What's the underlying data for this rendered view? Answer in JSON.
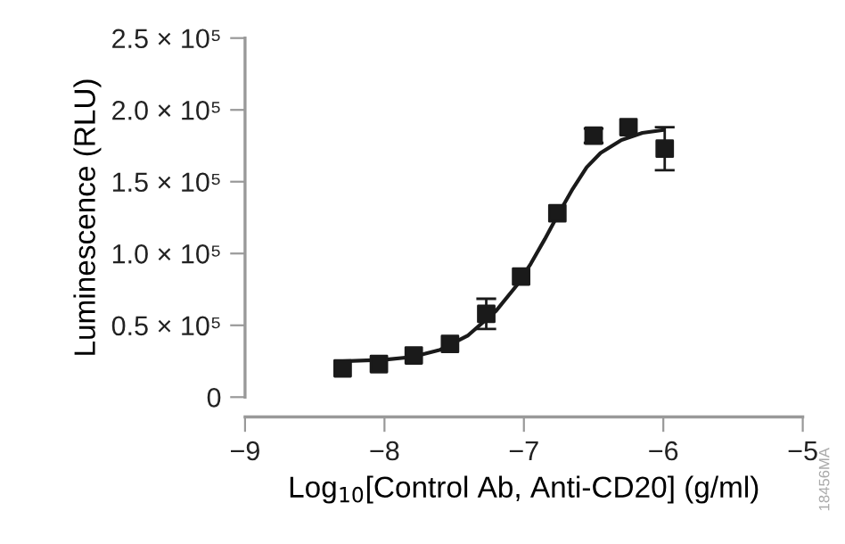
{
  "chart_data": {
    "type": "scatter",
    "xlabel": "Log$_{10}$[Control Ab, Anti-CD20] (g/ml)",
    "ylabel": "Luminescence (RLU)",
    "annotations": [
      "18456MA"
    ],
    "xlim": [
      -9,
      -5
    ],
    "xticks": [
      {
        "value": -9,
        "label": "−9"
      },
      {
        "value": -8,
        "label": "−8"
      },
      {
        "value": -7,
        "label": "−7"
      },
      {
        "value": -6,
        "label": "−6"
      },
      {
        "value": -5,
        "label": "−5"
      }
    ],
    "ylim": [
      0,
      250000
    ],
    "yticks": [
      {
        "value": 0,
        "label": "0"
      },
      {
        "value": 50000,
        "label": "0.5 × 10⁵"
      },
      {
        "value": 100000,
        "label": "1.0 × 10⁵"
      },
      {
        "value": 150000,
        "label": "1.5 × 10⁵"
      },
      {
        "value": 200000,
        "label": "2.0 × 10⁵"
      },
      {
        "value": 250000,
        "label": "2.5 × 10⁵"
      }
    ],
    "grid": false,
    "legend": false,
    "series": [
      {
        "marker": "square",
        "color": "#1a1a1a",
        "x": [
          -8.3,
          -8.04,
          -7.79,
          -7.53,
          -7.27,
          -7.02,
          -6.76,
          -6.5,
          -6.25,
          -5.99
        ],
        "values": [
          20000,
          23000,
          29000,
          37000,
          58000,
          84000,
          128000,
          182000,
          188000,
          173000
        ],
        "errors": [
          null,
          null,
          null,
          null,
          10500,
          null,
          null,
          5000,
          null,
          15000
        ]
      },
      {
        "type": "line",
        "marker": "none",
        "line_style": "solid",
        "color": "#1a1a1a",
        "x": [
          -8.3,
          -8.0,
          -7.8,
          -7.6,
          -7.4,
          -7.2,
          -7.05,
          -6.95,
          -6.85,
          -6.75,
          -6.65,
          -6.55,
          -6.45,
          -6.3,
          -6.15,
          -6.0
        ],
        "values": [
          25000,
          26000,
          28000,
          33000,
          43000,
          60000,
          78000,
          93000,
          110000,
          128000,
          145000,
          160000,
          170000,
          179000,
          184000,
          186000
        ]
      }
    ]
  }
}
